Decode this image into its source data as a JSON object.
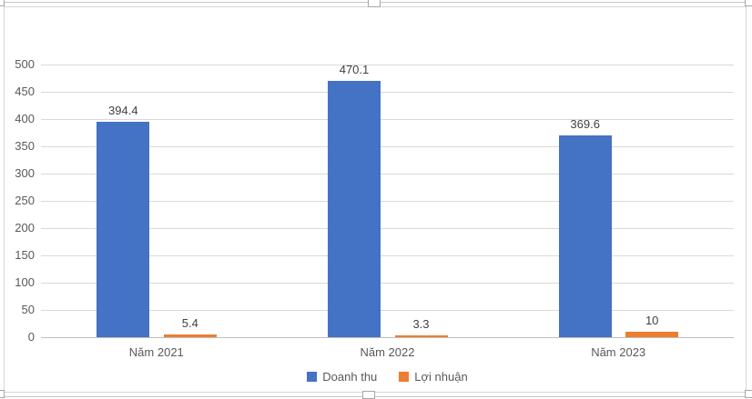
{
  "chart_data": {
    "type": "bar",
    "categories": [
      "Năm 2021",
      "Năm 2022",
      "Năm 2023"
    ],
    "series": [
      {
        "name": "Doanh thu",
        "color": "#4472C4",
        "values": [
          394.4,
          470.1,
          369.6
        ]
      },
      {
        "name": "Lợi nhuận",
        "color": "#ED7D31",
        "values": [
          5.4,
          3.3,
          10
        ]
      }
    ],
    "data_labels": [
      [
        "394.4",
        "470.1",
        "369.6"
      ],
      [
        "5.4",
        "3.3",
        "10"
      ]
    ],
    "title": "",
    "xlabel": "",
    "ylabel": "",
    "ylim": [
      0,
      500
    ],
    "yticks": [
      0,
      50,
      100,
      150,
      200,
      250,
      300,
      350,
      400,
      450,
      500
    ],
    "grid": true,
    "legend_position": "bottom"
  },
  "colors": {
    "series_blue": "#4472C4",
    "series_orange": "#ED7D31",
    "gridline": "#D9D9D9",
    "axis_line": "#BFBFBF",
    "axis_text": "#595959",
    "data_label_text": "#404040",
    "chart_border": "#D6D6D6",
    "selection_line": "#C6C6C6"
  }
}
